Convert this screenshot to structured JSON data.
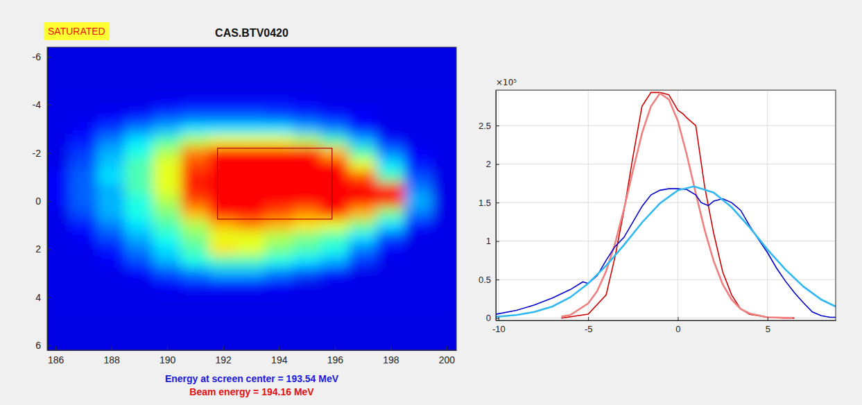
{
  "chart_data": [
    {
      "type": "heatmap",
      "title": "CAS.BTV0420",
      "status": "SATURATED",
      "xlim": [
        185.7,
        200.35
      ],
      "ylim": [
        -6.4,
        6.2
      ],
      "xticks": [
        186,
        188,
        190,
        192,
        194,
        196,
        198,
        200
      ],
      "yticks": [
        -6,
        -4,
        -2,
        0,
        2,
        4,
        6
      ],
      "grid": false,
      "x": [
        186,
        187,
        188,
        189,
        190,
        191,
        192,
        193,
        194,
        195,
        196,
        197,
        198,
        199,
        200
      ],
      "y": [
        -4,
        -3.5,
        -3,
        -2.5,
        -2,
        -1.5,
        -1,
        -0.5,
        0,
        0.5,
        1,
        1.5,
        2,
        2.5,
        3,
        3.5,
        4
      ],
      "cells": [
        [
          0.1,
          0.1,
          0.1,
          0.1,
          0.12,
          0.15,
          0.15,
          0.15,
          0.15,
          0.12,
          0.1,
          0.1,
          0.1,
          0.1,
          0.1
        ],
        [
          0.1,
          0.1,
          0.12,
          0.15,
          0.2,
          0.22,
          0.22,
          0.22,
          0.2,
          0.18,
          0.15,
          0.12,
          0.1,
          0.1,
          0.1
        ],
        [
          0.1,
          0.12,
          0.18,
          0.25,
          0.3,
          0.35,
          0.35,
          0.35,
          0.35,
          0.3,
          0.25,
          0.15,
          0.1,
          0.1,
          0.1
        ],
        [
          0.1,
          0.15,
          0.25,
          0.35,
          0.45,
          0.55,
          0.6,
          0.6,
          0.6,
          0.55,
          0.45,
          0.3,
          0.15,
          0.1,
          0.1
        ],
        [
          0.1,
          0.18,
          0.3,
          0.4,
          0.55,
          0.75,
          1,
          1,
          1,
          0.95,
          0.7,
          0.45,
          0.25,
          0.12,
          0.1
        ],
        [
          0.1,
          0.2,
          0.32,
          0.45,
          0.6,
          0.8,
          1,
          1,
          1,
          1,
          0.9,
          0.6,
          0.35,
          0.15,
          0.1
        ],
        [
          0.12,
          0.22,
          0.35,
          0.45,
          0.6,
          0.85,
          1,
          1,
          1,
          1,
          1,
          0.8,
          0.45,
          0.2,
          0.1
        ],
        [
          0.12,
          0.22,
          0.3,
          0.45,
          0.6,
          0.85,
          1,
          1,
          1,
          1,
          1,
          1,
          0.85,
          0.25,
          0.1
        ],
        [
          0.12,
          0.22,
          0.3,
          0.4,
          0.55,
          0.8,
          1,
          1,
          1,
          1,
          1,
          1,
          0.85,
          0.3,
          0.1
        ],
        [
          0.1,
          0.2,
          0.3,
          0.4,
          0.5,
          0.7,
          1,
          1,
          0.8,
          0.75,
          0.9,
          0.7,
          0.5,
          0.25,
          0.1
        ],
        [
          0.1,
          0.15,
          0.25,
          0.35,
          0.45,
          0.55,
          0.7,
          0.75,
          0.7,
          0.65,
          0.6,
          0.5,
          0.35,
          0.15,
          0.1
        ],
        [
          0.1,
          0.12,
          0.2,
          0.3,
          0.4,
          0.5,
          0.6,
          0.6,
          0.55,
          0.5,
          0.45,
          0.35,
          0.2,
          0.1,
          0.1
        ],
        [
          0.1,
          0.1,
          0.15,
          0.25,
          0.35,
          0.45,
          0.65,
          0.6,
          0.5,
          0.45,
          0.4,
          0.25,
          0.12,
          0.1,
          0.1
        ],
        [
          0.1,
          0.1,
          0.12,
          0.2,
          0.3,
          0.4,
          0.45,
          0.45,
          0.4,
          0.35,
          0.3,
          0.18,
          0.1,
          0.1,
          0.1
        ],
        [
          0.1,
          0.1,
          0.1,
          0.12,
          0.2,
          0.25,
          0.3,
          0.3,
          0.25,
          0.2,
          0.15,
          0.1,
          0.1,
          0.1,
          0.1
        ],
        [
          0.1,
          0.1,
          0.1,
          0.1,
          0.12,
          0.15,
          0.15,
          0.15,
          0.12,
          0.1,
          0.1,
          0.1,
          0.1,
          0.1,
          0.1
        ],
        [
          0.1,
          0.1,
          0.1,
          0.1,
          0.1,
          0.1,
          0.1,
          0.1,
          0.1,
          0.1,
          0.1,
          0.1,
          0.1,
          0.1,
          0.1
        ]
      ],
      "roi": {
        "x": [
          191.8,
          195.9
        ],
        "y": [
          -2.2,
          0.75
        ]
      },
      "annotations": [
        {
          "text": "Energy at screen center = 193.54 MeV",
          "color": "#1a1adc"
        },
        {
          "text": "Beam energy = 194.16 MeV",
          "color": "#e01010"
        }
      ]
    },
    {
      "type": "line",
      "y_multiplier_label": "×10⁵",
      "xlim": [
        -10.15,
        8.8
      ],
      "ylim": [
        -0.03,
        2.96
      ],
      "xticks": [
        -10,
        -5,
        0,
        5
      ],
      "yticks": [
        0,
        0.5,
        1,
        1.5,
        2,
        2.5
      ],
      "grid": true,
      "series": [
        {
          "color": "#cc0000",
          "line_style": "solid",
          "x": [
            -6.5,
            -5,
            -4,
            -3.5,
            -3,
            -2.5,
            -2,
            -1.5,
            -1,
            -0.5,
            0,
            0.3,
            0.5,
            1,
            1.5,
            2,
            2.5,
            3,
            3.5,
            4,
            5,
            6,
            6.5
          ],
          "values": [
            0,
            0.05,
            0.3,
            0.8,
            1.4,
            2.1,
            2.75,
            2.93,
            2.93,
            2.9,
            2.7,
            2.65,
            2.6,
            2.5,
            1.7,
            1.1,
            0.6,
            0.3,
            0.12,
            0.05,
            0.01,
            0,
            0
          ]
        },
        {
          "color": "#f08080",
          "line_style": "solid",
          "x": [
            -6.5,
            -6,
            -5,
            -4.5,
            -4,
            -3.5,
            -3,
            -2.5,
            -2,
            -1.5,
            -1,
            -0.5,
            0,
            0.5,
            1,
            1.5,
            2,
            2.5,
            3,
            3.5,
            4,
            5,
            6.4
          ],
          "values": [
            0.02,
            0.04,
            0.19,
            0.35,
            0.61,
            0.97,
            1.42,
            1.92,
            2.4,
            2.75,
            2.92,
            2.84,
            2.56,
            2.12,
            1.62,
            1.14,
            0.74,
            0.44,
            0.24,
            0.12,
            0.06,
            0.01,
            0
          ]
        },
        {
          "color": "#0000cc",
          "line_style": "solid",
          "x": [
            -10.15,
            -9,
            -8,
            -7,
            -6,
            -5.3,
            -5,
            -4.5,
            -4,
            -3.5,
            -3,
            -2.5,
            -2,
            -1.5,
            -1,
            -0.5,
            0,
            0.5,
            1,
            1.3,
            1.7,
            2,
            2.5,
            3,
            3.5,
            4,
            4.5,
            5,
            5.5,
            6,
            6.5,
            7,
            7.5,
            8,
            8.5,
            8.8
          ],
          "values": [
            0.05,
            0.1,
            0.17,
            0.26,
            0.37,
            0.47,
            0.45,
            0.55,
            0.75,
            0.93,
            1.05,
            1.25,
            1.45,
            1.6,
            1.66,
            1.68,
            1.68,
            1.67,
            1.6,
            1.5,
            1.46,
            1.52,
            1.55,
            1.5,
            1.4,
            1.2,
            1.02,
            0.85,
            0.65,
            0.48,
            0.33,
            0.2,
            0.08,
            0.03,
            0.01,
            0.01
          ]
        },
        {
          "color": "#30b8f0",
          "line_style": "solid",
          "x": [
            -10.15,
            -10,
            -9,
            -8,
            -7,
            -6,
            -5,
            -4,
            -3,
            -2,
            -1,
            0,
            0.9,
            2,
            3,
            4,
            5,
            6,
            7,
            8,
            8.8
          ],
          "values": [
            0.02,
            0.02,
            0.04,
            0.08,
            0.15,
            0.27,
            0.45,
            0.68,
            0.95,
            1.24,
            1.49,
            1.66,
            1.71,
            1.63,
            1.44,
            1.18,
            0.89,
            0.63,
            0.41,
            0.24,
            0.15
          ]
        }
      ]
    }
  ]
}
